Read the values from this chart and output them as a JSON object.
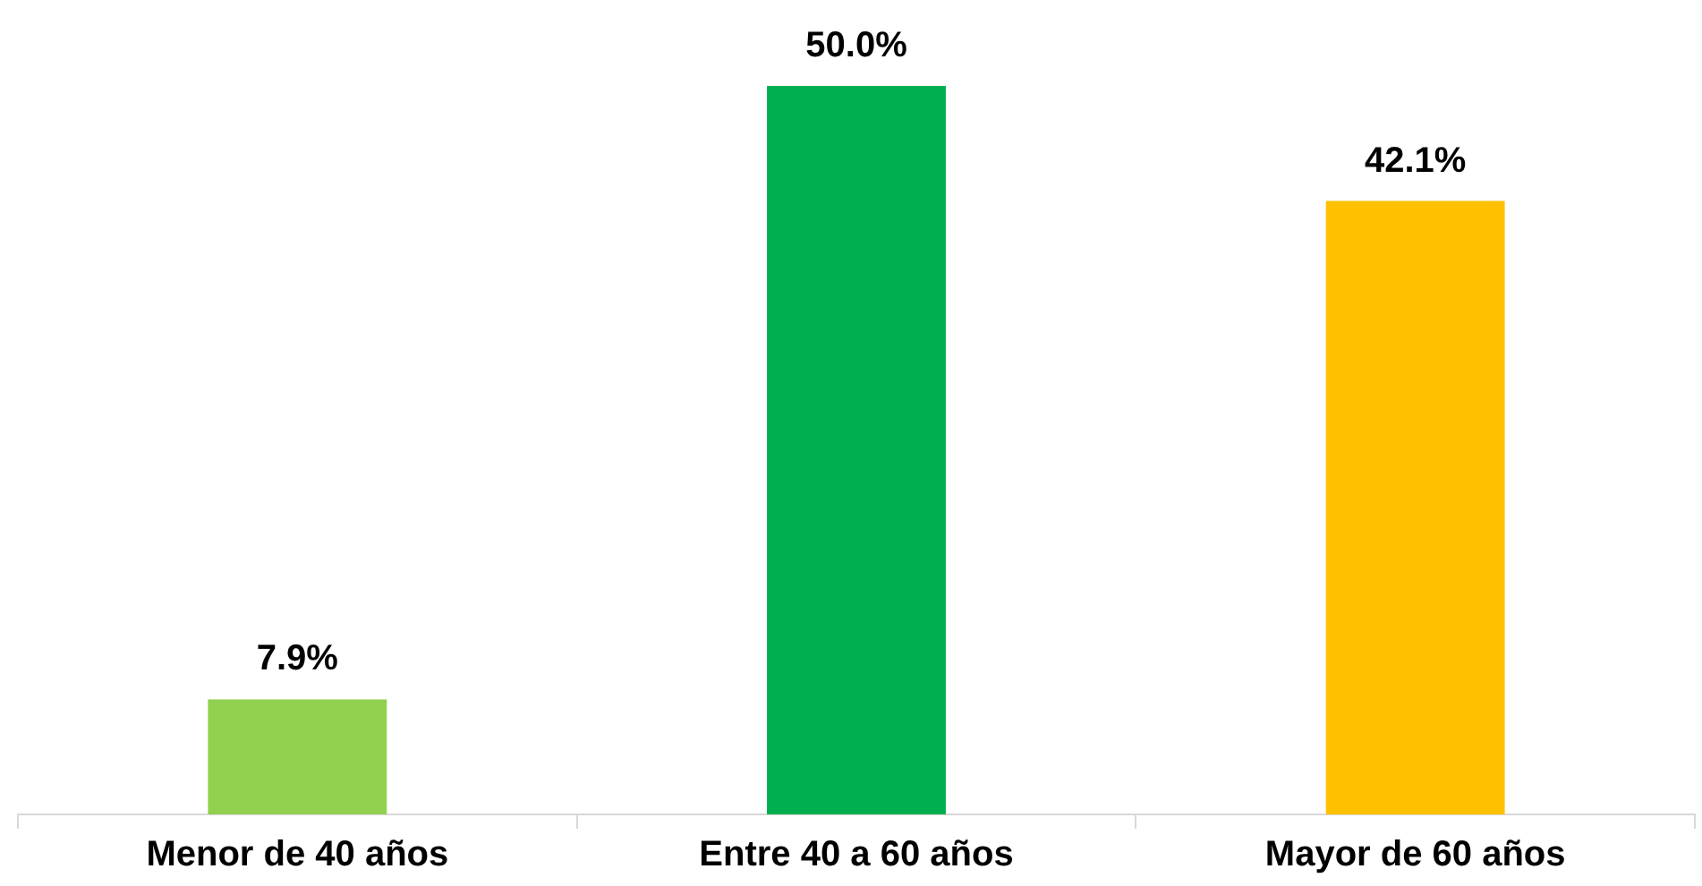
{
  "chart_data": {
    "type": "bar",
    "categories": [
      "Menor de 40 años",
      "Entre 40 a 60 años",
      "Mayor de 60 años"
    ],
    "values": [
      7.9,
      50.0,
      42.1
    ],
    "colors": [
      "#92d050",
      "#00b050",
      "#ffc000"
    ],
    "value_labels": [
      "7.9%",
      "50.0%",
      "42.1%"
    ],
    "grid": false,
    "legend": false
  }
}
